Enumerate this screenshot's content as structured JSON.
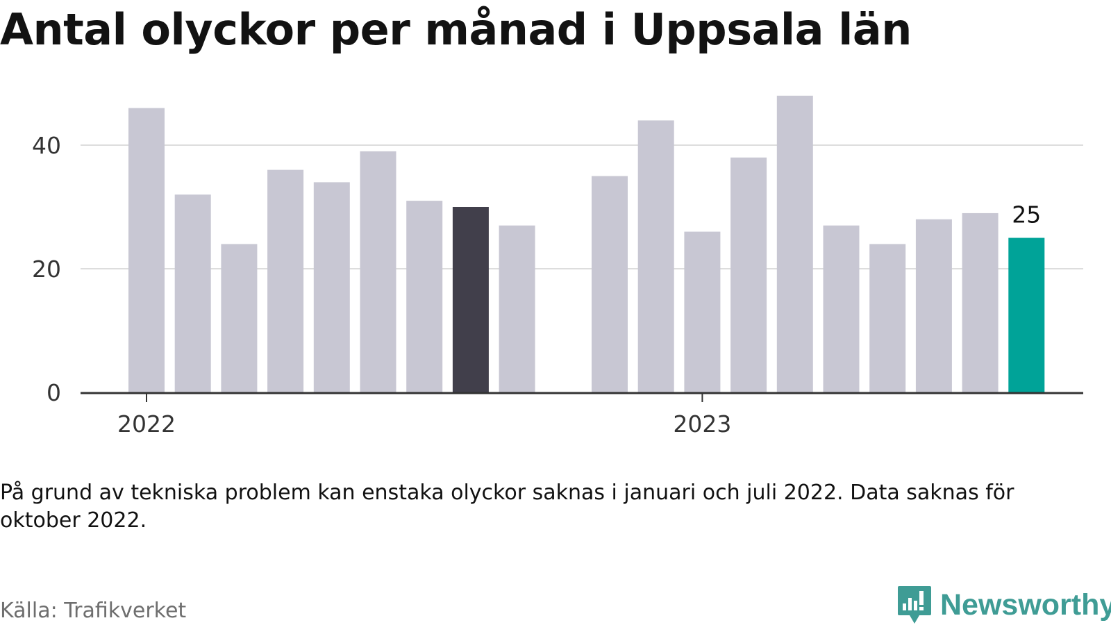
{
  "title": "Antal olyckor per månad i Uppsala län",
  "note": "På grund av tekniska problem kan enstaka olyckor saknas i januari och juli 2022. Data saknas för oktober 2022.",
  "source": "Källa: Trafikverket",
  "logo": {
    "text": "Newsworthy",
    "icon": "bar-chart-speech-bubble-icon"
  },
  "colors": {
    "default_bar": "#c8c7d3",
    "highlight_dark": "#413f4b",
    "highlight_accent": "#00a398",
    "grid": "#dddddd",
    "axis": "#333333",
    "logo": "#3f9c95"
  },
  "chart_data": {
    "type": "bar",
    "title": "Antal olyckor per månad i Uppsala län",
    "xlabel": "",
    "ylabel": "",
    "ylim": [
      0,
      50
    ],
    "yticks": [
      0,
      20,
      40
    ],
    "grid": true,
    "categories": [
      "2022-01",
      "2022-02",
      "2022-03",
      "2022-04",
      "2022-05",
      "2022-06",
      "2022-07",
      "2022-08",
      "2022-09",
      "2022-10",
      "2022-11",
      "2022-12",
      "2023-01",
      "2023-02",
      "2023-03",
      "2023-04",
      "2023-05",
      "2023-06",
      "2023-07",
      "2023-08",
      "2023-09",
      "2023-10",
      "2023-11",
      "2023-12"
    ],
    "values": [
      46,
      32,
      24,
      36,
      34,
      39,
      31,
      30,
      27,
      null,
      35,
      44,
      26,
      38,
      48,
      27,
      24,
      28,
      29,
      25,
      null,
      null,
      null,
      null
    ],
    "highlight": {
      "2022-08": "dark",
      "2023-08": "accent"
    },
    "x_tick_labels": [
      {
        "category": "2022-01",
        "label": "2022"
      },
      {
        "category": "2023-01",
        "label": "2023"
      }
    ],
    "value_labels": [
      {
        "category": "2023-08",
        "label": "25"
      }
    ]
  }
}
